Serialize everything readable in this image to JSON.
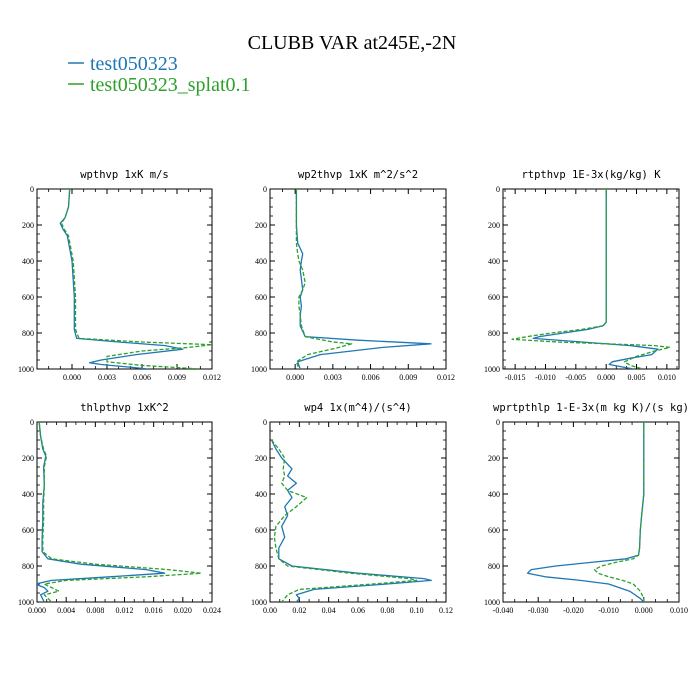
{
  "title": "CLUBB VAR at245E,-2N",
  "legend": [
    {
      "label": "test050323",
      "color": "#1f77b4",
      "dash": "solid"
    },
    {
      "label": "test050323_splat0.1",
      "color": "#2ca02c",
      "dash": "dashed"
    }
  ],
  "chart_data": [
    {
      "type": "line",
      "title": "wpthvp  1xK m/s",
      "xlim": [
        -0.003,
        0.012
      ],
      "xticks": [
        0.0,
        0.003,
        0.006,
        0.009,
        0.012
      ],
      "xticklabels": [
        "0.000",
        "0.003",
        "0.006",
        "0.009",
        "0.012"
      ],
      "ylim": [
        1000,
        0
      ],
      "yticks": [
        0,
        200,
        400,
        600,
        800,
        1000
      ],
      "series": [
        {
          "y": [
            0,
            100,
            160,
            190,
            220,
            260,
            400,
            600,
            780,
            830,
            850,
            870,
            890,
            920,
            950,
            965,
            975,
            990,
            1000
          ],
          "x": [
            -0.0002,
            -0.0003,
            -0.0006,
            -0.001,
            -0.0008,
            -0.0004,
            0.0,
            0.0002,
            0.0002,
            0.0004,
            0.004,
            0.008,
            0.0095,
            0.0055,
            0.0025,
            0.0015,
            0.0025,
            0.005,
            0.0065
          ]
        },
        {
          "y": [
            0,
            100,
            160,
            190,
            220,
            260,
            400,
            600,
            780,
            830,
            850,
            865,
            880,
            900,
            930,
            960,
            980,
            1000
          ],
          "x": [
            -0.0002,
            -0.0003,
            -0.0006,
            -0.0009,
            -0.0007,
            -0.0003,
            0.0001,
            0.0003,
            0.0003,
            0.0006,
            0.006,
            0.012,
            0.01,
            0.006,
            0.003,
            0.003,
            0.006,
            0.011
          ]
        }
      ]
    },
    {
      "type": "line",
      "title": "wp2thvp  1xK m^2/s^2",
      "xlim": [
        -0.002,
        0.012
      ],
      "xticks": [
        0.0,
        0.003,
        0.006,
        0.009,
        0.012
      ],
      "xticklabels": [
        "0.000",
        "0.003",
        "0.006",
        "0.009",
        "0.012"
      ],
      "ylim": [
        1000,
        0
      ],
      "yticks": [
        0,
        200,
        400,
        600,
        800,
        1000
      ],
      "series": [
        {
          "y": [
            0,
            200,
            300,
            360,
            400,
            450,
            500,
            560,
            600,
            650,
            700,
            760,
            820,
            840,
            860,
            880,
            920,
            960,
            1000
          ],
          "x": [
            0.0001,
            0.0001,
            0.0002,
            0.0006,
            0.0005,
            0.0004,
            0.0005,
            0.0006,
            0.0004,
            0.0005,
            0.0004,
            0.0004,
            0.0008,
            0.005,
            0.0108,
            0.007,
            0.002,
            0.0002,
            0.0004
          ]
        },
        {
          "y": [
            0,
            200,
            300,
            360,
            400,
            450,
            520,
            560,
            600,
            650,
            700,
            760,
            820,
            850,
            860,
            880,
            920,
            960,
            1000
          ],
          "x": [
            0.0001,
            0.0001,
            0.0001,
            0.0002,
            0.0003,
            0.0006,
            0.0008,
            0.0006,
            0.0003,
            0.0003,
            0.0004,
            0.0005,
            0.0008,
            0.003,
            0.0045,
            0.0035,
            0.001,
            0.0001,
            0.0003
          ]
        }
      ]
    },
    {
      "type": "line",
      "title": "rtpthvp  1E-3x(kg/kg) K",
      "xlim": [
        -0.017,
        0.012
      ],
      "xticks": [
        -0.015,
        -0.01,
        -0.005,
        0.0,
        0.005,
        0.01
      ],
      "xticklabels": [
        "-0.015",
        "-0.010",
        "-0.005",
        "0.000",
        "0.005",
        "0.010"
      ],
      "ylim": [
        1000,
        0
      ],
      "yticks": [
        0,
        200,
        400,
        600,
        800,
        1000
      ],
      "series": [
        {
          "y": [
            0,
            200,
            400,
            600,
            700,
            740,
            760,
            780,
            800,
            820,
            830,
            850,
            870,
            890,
            920,
            940,
            960,
            975,
            1000
          ],
          "x": [
            0.0,
            0.0,
            0.0,
            0.0,
            0.0,
            0.0,
            -0.0005,
            -0.003,
            -0.007,
            -0.011,
            -0.012,
            -0.004,
            0.004,
            0.0085,
            0.0075,
            0.004,
            0.001,
            0.0005,
            0.0045
          ]
        },
        {
          "y": [
            0,
            200,
            400,
            600,
            700,
            740,
            760,
            780,
            800,
            820,
            835,
            850,
            870,
            880,
            900,
            930,
            960,
            980,
            1000
          ],
          "x": [
            0.0,
            0.0,
            0.0,
            0.0,
            0.0,
            0.0,
            -0.0005,
            -0.004,
            -0.009,
            -0.013,
            -0.0155,
            -0.008,
            0.008,
            0.0105,
            0.008,
            0.005,
            0.003,
            0.004,
            0.006
          ]
        }
      ]
    },
    {
      "type": "line",
      "title": "thlpthvp  1xK^2",
      "xlim": [
        0.0,
        0.024
      ],
      "xticks": [
        0.0,
        0.004,
        0.008,
        0.012,
        0.016,
        0.02,
        0.024
      ],
      "xticklabels": [
        "0.000",
        "0.004",
        "0.008",
        "0.012",
        "0.016",
        "0.020",
        "0.024"
      ],
      "ylim": [
        1000,
        0
      ],
      "yticks": [
        0,
        200,
        400,
        600,
        800,
        1000
      ],
      "series": [
        {
          "y": [
            0,
            80,
            150,
            190,
            250,
            350,
            450,
            550,
            650,
            720,
            760,
            790,
            820,
            840,
            860,
            880,
            900,
            920,
            940,
            960,
            1000
          ],
          "x": [
            0.0003,
            0.0005,
            0.0008,
            0.0012,
            0.0009,
            0.001,
            0.0008,
            0.0008,
            0.0007,
            0.0007,
            0.0015,
            0.006,
            0.015,
            0.0175,
            0.01,
            0.002,
            -0.0002,
            0.001,
            0.0015,
            0.0005,
            0.001
          ]
        },
        {
          "y": [
            0,
            80,
            150,
            190,
            250,
            350,
            450,
            550,
            650,
            720,
            760,
            790,
            820,
            840,
            860,
            880,
            900,
            920,
            940,
            960,
            1000
          ],
          "x": [
            0.0003,
            0.0005,
            0.0009,
            0.0013,
            0.001,
            0.001,
            0.0009,
            0.0009,
            0.0008,
            0.0008,
            0.002,
            0.008,
            0.018,
            0.0225,
            0.015,
            0.004,
            0.001,
            0.002,
            0.003,
            0.001,
            0.002
          ]
        }
      ]
    },
    {
      "type": "line",
      "title": "wp4  1x(m^4)/(s^4)",
      "xlim": [
        0.0,
        0.12
      ],
      "xticks": [
        0.0,
        0.02,
        0.04,
        0.06,
        0.08,
        0.1,
        0.12
      ],
      "xticklabels": [
        "0.00",
        "0.02",
        "0.04",
        "0.06",
        "0.08",
        "0.10",
        "0.12"
      ],
      "ylim": [
        1000,
        0
      ],
      "yticks": [
        0,
        200,
        400,
        600,
        800,
        1000
      ],
      "series": [
        {
          "y": [
            100,
            150,
            200,
            260,
            300,
            340,
            380,
            420,
            470,
            520,
            580,
            640,
            700,
            760,
            800,
            840,
            870,
            880,
            900,
            930,
            960,
            980,
            1000
          ],
          "x": [
            0.001,
            0.004,
            0.008,
            0.015,
            0.012,
            0.018,
            0.012,
            0.015,
            0.01,
            0.012,
            0.008,
            0.01,
            0.006,
            0.006,
            0.015,
            0.06,
            0.105,
            0.11,
            0.08,
            0.03,
            0.018,
            0.02,
            0.018
          ]
        },
        {
          "y": [
            100,
            150,
            200,
            260,
            300,
            340,
            380,
            420,
            470,
            520,
            580,
            640,
            700,
            760,
            800,
            840,
            870,
            880,
            900,
            930,
            960,
            980,
            1000
          ],
          "x": [
            0.001,
            0.006,
            0.01,
            0.009,
            0.01,
            0.008,
            0.012,
            0.025,
            0.018,
            0.01,
            0.004,
            0.003,
            0.004,
            0.006,
            0.012,
            0.055,
            0.095,
            0.1,
            0.07,
            0.02,
            0.012,
            0.01,
            0.008
          ]
        }
      ]
    },
    {
      "type": "line",
      "title": "wprtpthlp  1-E-3x(m kg K)/(s kg)",
      "xlim": [
        -0.04,
        0.01
      ],
      "xticks": [
        -0.04,
        -0.03,
        -0.02,
        -0.01,
        0.0,
        0.01
      ],
      "xticklabels": [
        "-0.040",
        "-0.030",
        "-0.020",
        "-0.010",
        "0.000",
        "0.010"
      ],
      "ylim": [
        1000,
        0
      ],
      "yticks": [
        0,
        200,
        400,
        600,
        800,
        1000
      ],
      "series": [
        {
          "y": [
            0,
            200,
            400,
            500,
            600,
            700,
            740,
            760,
            780,
            800,
            820,
            840,
            860,
            880,
            900,
            940,
            980,
            1000
          ],
          "x": [
            0.0,
            0.0,
            0.0,
            -0.0005,
            -0.001,
            -0.0012,
            -0.0015,
            -0.005,
            -0.015,
            -0.025,
            -0.032,
            -0.033,
            -0.028,
            -0.018,
            -0.01,
            -0.004,
            -0.001,
            0.0
          ]
        },
        {
          "y": [
            0,
            200,
            400,
            500,
            600,
            700,
            740,
            760,
            780,
            800,
            820,
            840,
            860,
            880,
            900,
            940,
            980,
            1000
          ],
          "x": [
            0.0,
            0.0,
            0.0,
            -0.0005,
            -0.001,
            -0.0012,
            -0.0015,
            -0.003,
            -0.008,
            -0.012,
            -0.014,
            -0.013,
            -0.01,
            -0.006,
            -0.003,
            -0.001,
            0.0,
            0.0
          ]
        }
      ]
    }
  ]
}
